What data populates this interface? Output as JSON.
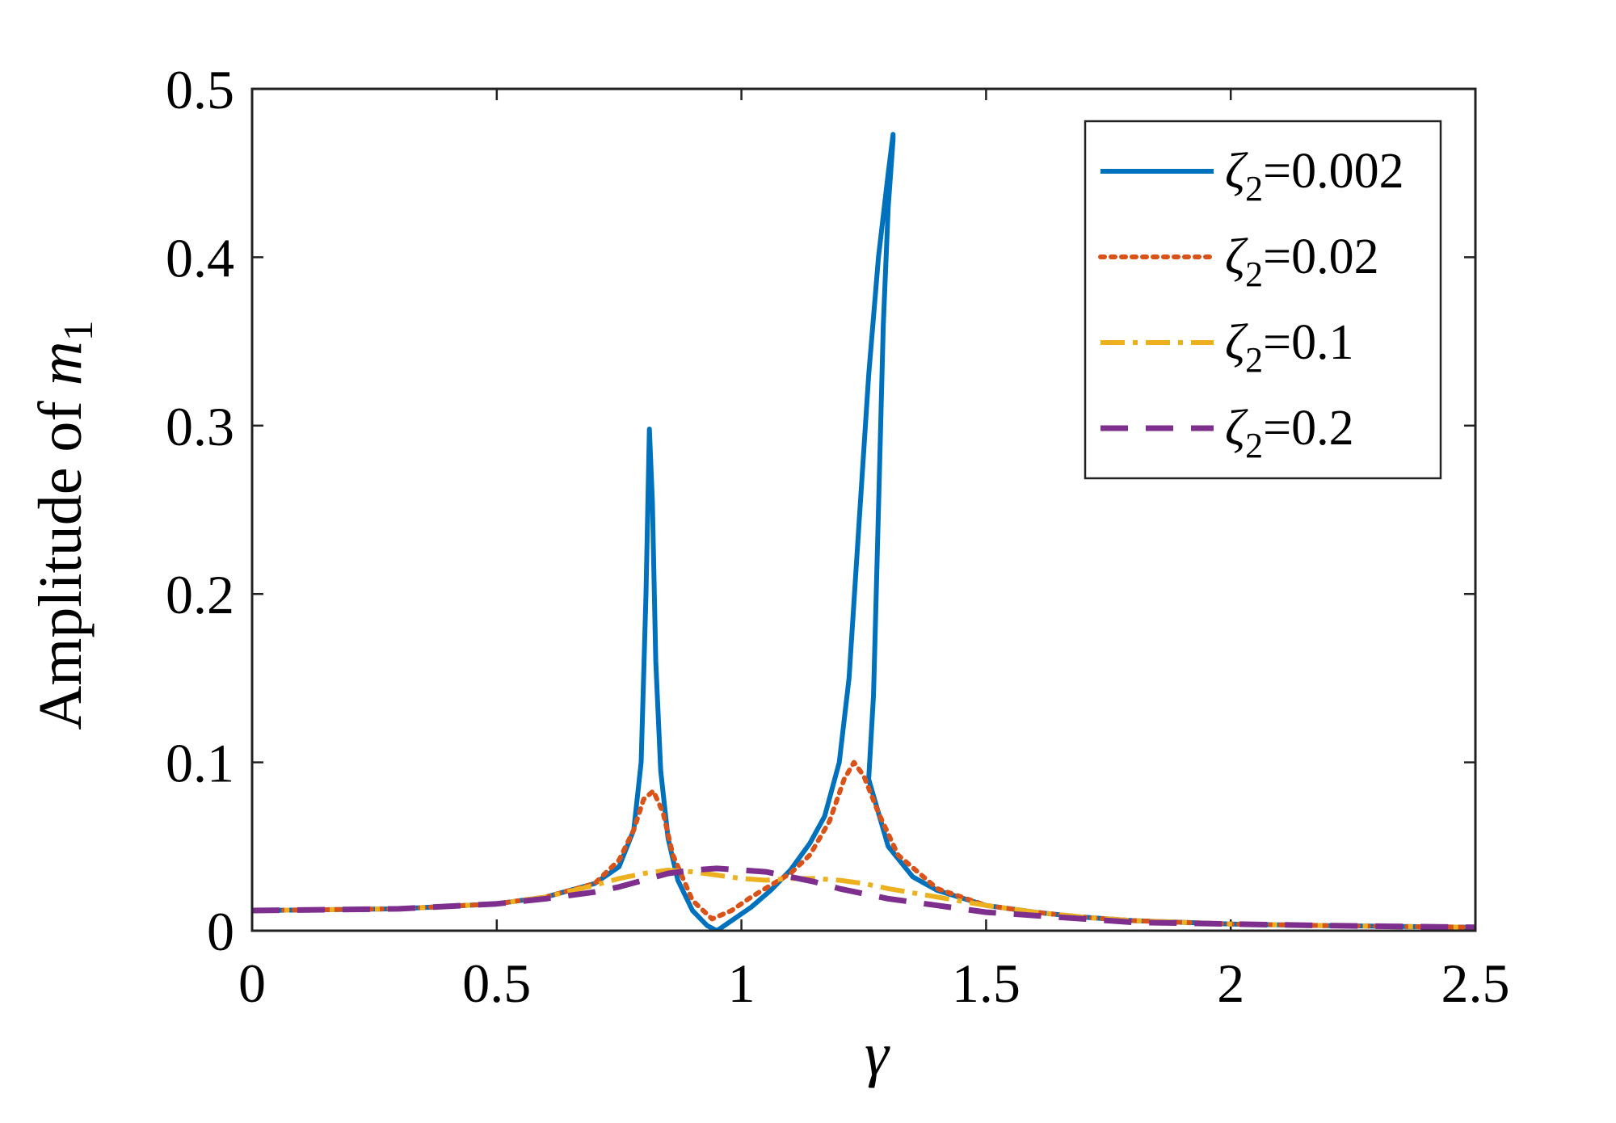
{
  "chart_data": {
    "type": "line",
    "xlabel": "γ",
    "ylabel": {
      "prefix": "Amplitude of ",
      "var": "m",
      "sub": "1"
    },
    "xlim": [
      0,
      2.5
    ],
    "ylim": [
      0,
      0.5
    ],
    "xticks": [
      "0",
      "0.5",
      "1",
      "1.5",
      "2",
      "2.5"
    ],
    "yticks": [
      "0",
      "0.1",
      "0.2",
      "0.3",
      "0.4",
      "0.5"
    ],
    "xtick_values": [
      0,
      0.5,
      1,
      1.5,
      2,
      2.5
    ],
    "ytick_values": [
      0,
      0.1,
      0.2,
      0.3,
      0.4,
      0.5
    ],
    "grid": false,
    "legend_position": "top-right",
    "series": [
      {
        "name": "ζ2=0.002",
        "label_parts": {
          "sym": "ζ",
          "sub": "2",
          "value": "=0.002"
        },
        "color": "#0072BD",
        "style": "solid",
        "x": [
          0,
          0.3,
          0.5,
          0.6,
          0.7,
          0.75,
          0.78,
          0.795,
          0.805,
          0.812,
          0.818,
          0.825,
          0.835,
          0.85,
          0.87,
          0.9,
          0.93,
          0.95,
          0.98,
          1.02,
          1.06,
          1.1,
          1.14,
          1.17,
          1.2,
          1.22,
          1.24,
          1.26,
          1.28,
          1.3,
          1.31,
          1.31,
          1.3,
          1.29,
          1.28,
          1.27,
          1.26,
          1.3,
          1.35,
          1.4,
          1.5,
          1.6,
          1.7,
          1.8,
          2.0,
          2.2,
          2.5
        ],
        "y": [
          0.012,
          0.013,
          0.016,
          0.02,
          0.028,
          0.038,
          0.06,
          0.1,
          0.2,
          0.298,
          0.255,
          0.16,
          0.095,
          0.055,
          0.03,
          0.012,
          0.003,
          0.0,
          0.006,
          0.014,
          0.024,
          0.036,
          0.052,
          0.068,
          0.1,
          0.15,
          0.24,
          0.33,
          0.4,
          0.45,
          0.473,
          0.47,
          0.43,
          0.36,
          0.25,
          0.14,
          0.09,
          0.05,
          0.032,
          0.024,
          0.015,
          0.011,
          0.008,
          0.006,
          0.004,
          0.003,
          0.002
        ]
      },
      {
        "name": "ζ2=0.02",
        "label_parts": {
          "sym": "ζ",
          "sub": "2",
          "value": "=0.02"
        },
        "color": "#D95319",
        "style": "dotted",
        "x": [
          0,
          0.3,
          0.5,
          0.6,
          0.7,
          0.75,
          0.78,
          0.8,
          0.82,
          0.84,
          0.86,
          0.9,
          0.94,
          0.98,
          1.02,
          1.06,
          1.1,
          1.14,
          1.18,
          1.21,
          1.23,
          1.25,
          1.28,
          1.32,
          1.4,
          1.5,
          1.6,
          1.7,
          1.8,
          2.0,
          2.2,
          2.5
        ],
        "y": [
          0.012,
          0.013,
          0.016,
          0.02,
          0.028,
          0.042,
          0.06,
          0.078,
          0.083,
          0.07,
          0.045,
          0.018,
          0.007,
          0.012,
          0.02,
          0.027,
          0.034,
          0.045,
          0.065,
          0.09,
          0.1,
          0.092,
          0.07,
          0.045,
          0.025,
          0.015,
          0.011,
          0.008,
          0.006,
          0.004,
          0.003,
          0.002
        ]
      },
      {
        "name": "ζ2=0.1",
        "label_parts": {
          "sym": "ζ",
          "sub": "2",
          "value": "=0.1"
        },
        "color": "#EDB120",
        "style": "dashdot",
        "x": [
          0,
          0.3,
          0.5,
          0.6,
          0.7,
          0.75,
          0.8,
          0.85,
          0.9,
          0.95,
          1.0,
          1.05,
          1.1,
          1.15,
          1.2,
          1.25,
          1.3,
          1.4,
          1.5,
          1.6,
          1.7,
          1.8,
          2.0,
          2.2,
          2.5
        ],
        "y": [
          0.012,
          0.013,
          0.016,
          0.02,
          0.027,
          0.031,
          0.034,
          0.036,
          0.035,
          0.033,
          0.031,
          0.03,
          0.031,
          0.031,
          0.03,
          0.028,
          0.025,
          0.02,
          0.015,
          0.011,
          0.008,
          0.006,
          0.004,
          0.003,
          0.002
        ]
      },
      {
        "name": "ζ2=0.2",
        "label_parts": {
          "sym": "ζ",
          "sub": "2",
          "value": "=0.2"
        },
        "color": "#7E2F8E",
        "style": "dashed",
        "x": [
          0,
          0.3,
          0.5,
          0.6,
          0.7,
          0.75,
          0.8,
          0.85,
          0.9,
          0.95,
          1.0,
          1.05,
          1.1,
          1.15,
          1.2,
          1.25,
          1.3,
          1.4,
          1.5,
          1.6,
          1.7,
          1.8,
          2.0,
          2.2,
          2.5
        ],
        "y": [
          0.012,
          0.013,
          0.016,
          0.019,
          0.023,
          0.026,
          0.03,
          0.034,
          0.036,
          0.037,
          0.036,
          0.035,
          0.032,
          0.029,
          0.025,
          0.022,
          0.019,
          0.015,
          0.011,
          0.009,
          0.007,
          0.005,
          0.004,
          0.003,
          0.002
        ]
      }
    ]
  }
}
